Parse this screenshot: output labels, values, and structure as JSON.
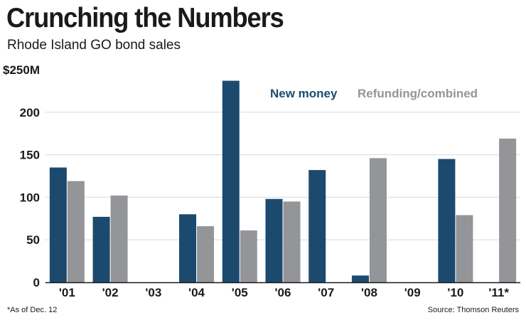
{
  "title": "Crunching the Numbers",
  "subtitle": "Rhode Island GO bond sales",
  "footnote": "*As of Dec. 12",
  "source": "Source: Thomson Reuters",
  "colors": {
    "new_money": "#1b4a6e",
    "refunding": "#939598",
    "axis": "#1a1a1a",
    "grid": "#d9d9d9"
  },
  "chart_data": {
    "type": "bar",
    "categories": [
      "'01",
      "'02",
      "'03",
      "'04",
      "'05",
      "'06",
      "'07",
      "'08",
      "'09",
      "'10",
      "'11*"
    ],
    "series": [
      {
        "name": "New money",
        "values": [
          135,
          77,
          0,
          80,
          237,
          98,
          132,
          8,
          0,
          145,
          0
        ]
      },
      {
        "name": "Refunding/combined",
        "values": [
          119,
          102,
          0,
          66,
          61,
          95,
          0,
          146,
          0,
          79,
          169
        ]
      }
    ],
    "ylim": [
      0,
      250
    ],
    "yticks": [
      0,
      50,
      100,
      150,
      200,
      250
    ],
    "ytick_labels": [
      "0",
      "50",
      "100",
      "150",
      "200",
      "$250M"
    ],
    "grid": true,
    "legend_position": "top-right"
  }
}
